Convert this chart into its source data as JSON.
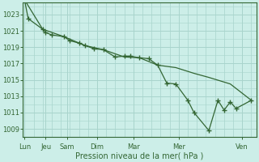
{
  "title": "Pression niveau de la mer( hPa )",
  "bg_color": "#cceee8",
  "grid_color": "#a8d4cc",
  "line_color": "#336633",
  "ylim": [
    1008.0,
    1024.5
  ],
  "yticks": [
    1009,
    1011,
    1013,
    1015,
    1017,
    1019,
    1021,
    1023
  ],
  "xlabel_days": [
    "Lun",
    "Jeu",
    "Sam",
    "Dim",
    "Mar",
    "Mer",
    "Ven"
  ],
  "day_positions": [
    0.0,
    0.583,
    1.167,
    2.0,
    3.0,
    4.25,
    6.0
  ],
  "xlim": [
    -0.05,
    6.4
  ],
  "line_jagged_x": [
    0.0,
    0.1,
    0.5,
    0.58,
    0.75,
    1.08,
    1.25,
    1.5,
    1.67,
    1.92,
    2.17,
    2.5,
    2.75,
    2.92,
    3.17,
    3.42,
    3.67,
    3.92,
    4.17,
    4.5,
    4.67,
    5.08,
    5.33,
    5.5,
    5.67,
    5.83,
    6.25
  ],
  "line_jagged_y": [
    1024.8,
    1022.5,
    1021.2,
    1020.8,
    1020.5,
    1020.3,
    1019.8,
    1019.5,
    1019.2,
    1018.8,
    1018.7,
    1017.8,
    1017.9,
    1017.9,
    1017.7,
    1017.6,
    1016.8,
    1014.6,
    1014.5,
    1012.5,
    1011.0,
    1008.8,
    1012.5,
    1011.3,
    1012.3,
    1011.5,
    1012.5
  ],
  "line_smooth_x": [
    0.0,
    0.5,
    1.08,
    1.67,
    2.17,
    2.75,
    3.17,
    3.67,
    4.17,
    4.67,
    5.08,
    5.67,
    6.25
  ],
  "line_smooth_y": [
    1024.8,
    1021.2,
    1020.3,
    1019.2,
    1018.7,
    1017.8,
    1017.7,
    1016.8,
    1016.5,
    1015.8,
    1015.3,
    1014.5,
    1012.5
  ],
  "markers_x": [
    0.0,
    0.1,
    0.5,
    0.58,
    0.75,
    1.08,
    1.25,
    1.5,
    1.67,
    1.92,
    2.17,
    2.5,
    2.75,
    2.92,
    3.17,
    3.42,
    3.67,
    3.92,
    4.17,
    4.5,
    4.67,
    5.08,
    5.33,
    5.5,
    5.67,
    5.83,
    6.25
  ],
  "markers_y": [
    1024.8,
    1022.5,
    1021.2,
    1020.8,
    1020.5,
    1020.3,
    1019.8,
    1019.5,
    1019.2,
    1018.8,
    1018.7,
    1017.8,
    1017.9,
    1017.9,
    1017.7,
    1017.6,
    1016.8,
    1014.6,
    1014.5,
    1012.5,
    1011.0,
    1008.8,
    1012.5,
    1011.3,
    1012.3,
    1011.5,
    1012.5
  ]
}
